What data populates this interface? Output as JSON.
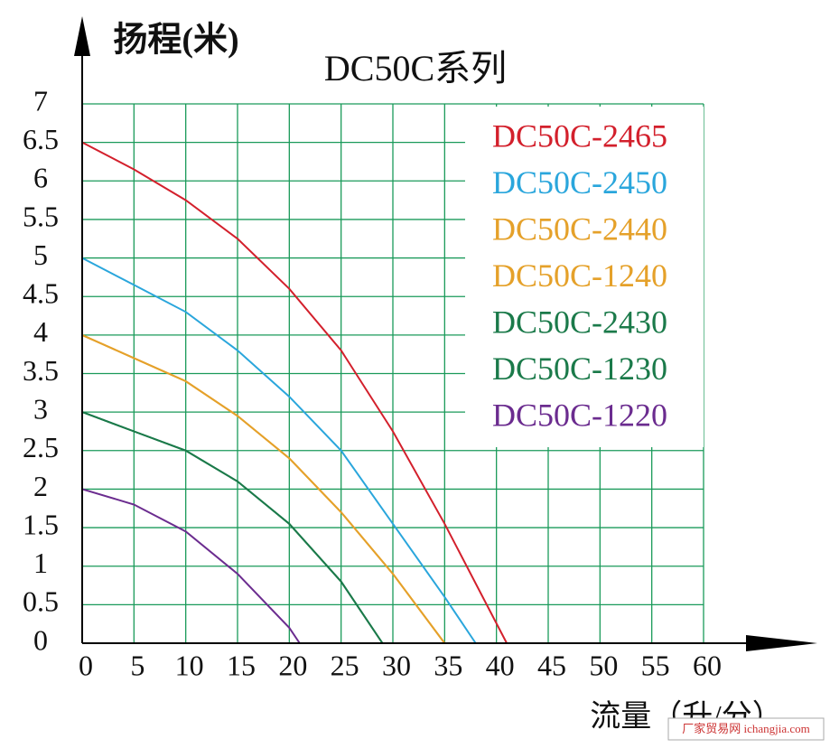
{
  "chart_data": {
    "type": "line",
    "title": "DC50C系列",
    "y_label": "扬程(米)",
    "x_label": "流量（升/分）",
    "watermark": "厂家贸易网 ichangjia.com",
    "xlim": [
      0,
      60
    ],
    "xticks": [
      0,
      5,
      10,
      15,
      20,
      25,
      30,
      35,
      40,
      45,
      50,
      55,
      60
    ],
    "ylim": [
      0,
      7
    ],
    "yticks": [
      0,
      0.5,
      1,
      1.5,
      2,
      2.5,
      3,
      3.5,
      4,
      4.5,
      5,
      5.5,
      6,
      6.5,
      7
    ],
    "grid": true,
    "legend": "upper right",
    "series": [
      {
        "name": "DC50C-2465",
        "color": "#d3202c",
        "x": [
          0,
          5,
          10,
          15,
          20,
          25,
          30,
          35,
          41
        ],
        "values": [
          6.5,
          6.15,
          5.75,
          5.25,
          4.6,
          3.8,
          2.75,
          1.55,
          0
        ]
      },
      {
        "name": "DC50C-2450",
        "color": "#2aa6dc",
        "x": [
          0,
          5,
          10,
          15,
          20,
          25,
          30,
          35,
          38
        ],
        "values": [
          5,
          4.65,
          4.3,
          3.8,
          3.2,
          2.5,
          1.55,
          0.6,
          0
        ]
      },
      {
        "name": "DC50C-2440",
        "color": "#e5a12a",
        "x": [
          0,
          5,
          10,
          15,
          20,
          25,
          30,
          35
        ],
        "values": [
          4,
          3.7,
          3.4,
          2.95,
          2.4,
          1.7,
          0.9,
          0
        ]
      },
      {
        "name": "DC50C-1240",
        "color": "#e5a12a",
        "x": [
          0,
          5,
          10,
          15,
          20,
          25,
          30,
          35
        ],
        "values": [
          4,
          3.7,
          3.4,
          2.95,
          2.4,
          1.7,
          0.9,
          0
        ]
      },
      {
        "name": "DC50C-2430",
        "color": "#1b7a4a",
        "x": [
          0,
          5,
          10,
          15,
          20,
          25,
          29
        ],
        "values": [
          3,
          2.75,
          2.5,
          2.1,
          1.55,
          0.8,
          0
        ]
      },
      {
        "name": "DC50C-1230",
        "color": "#1b7a4a",
        "x": [
          0,
          5,
          10,
          15,
          20,
          25,
          29
        ],
        "values": [
          3,
          2.75,
          2.5,
          2.1,
          1.55,
          0.8,
          0
        ]
      },
      {
        "name": "DC50C-1220",
        "color": "#6b2c8f",
        "x": [
          0,
          5,
          10,
          15,
          20,
          21
        ],
        "values": [
          2,
          1.8,
          1.45,
          0.9,
          0.2,
          0
        ]
      }
    ]
  }
}
